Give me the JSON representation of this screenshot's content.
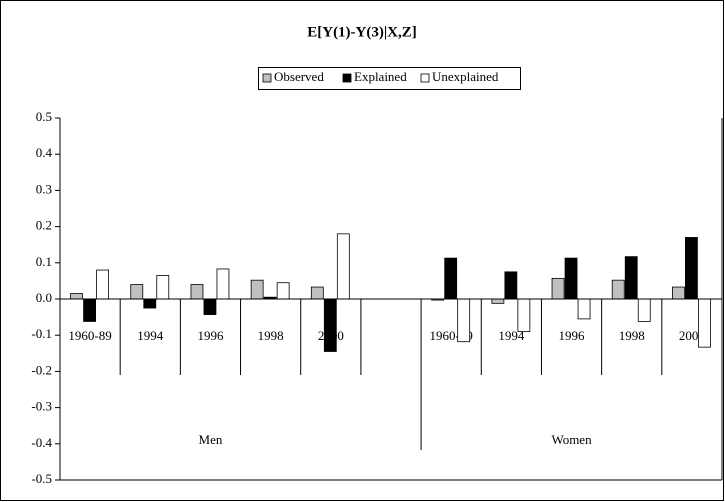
{
  "chart_data": {
    "type": "bar",
    "title": "E[Y(1)-Y(3)|X,Z]",
    "groups": [
      {
        "label": "Men",
        "categories": [
          "1960-89",
          "1994",
          "1996",
          "1998",
          "2000"
        ]
      },
      {
        "label": "Women",
        "categories": [
          "1960-89",
          "1994",
          "1996",
          "1998",
          "2000"
        ]
      }
    ],
    "series": [
      {
        "name": "Observed",
        "color": "#c0c0c0",
        "values": [
          0.015,
          0.04,
          0.04,
          0.052,
          0.033,
          -0.003,
          -0.012,
          0.057,
          0.052,
          0.033
        ]
      },
      {
        "name": "Explained",
        "color": "#000000",
        "values": [
          -0.062,
          -0.025,
          -0.043,
          0.005,
          -0.145,
          0.113,
          0.075,
          0.113,
          0.117,
          0.17
        ]
      },
      {
        "name": "Unexplained",
        "color": "#ffffff",
        "values": [
          0.08,
          0.065,
          0.083,
          0.045,
          0.18,
          -0.118,
          -0.09,
          -0.055,
          -0.062,
          -0.133
        ]
      }
    ],
    "ylim": [
      -0.5,
      0.5
    ],
    "yticks": [
      -0.5,
      -0.4,
      -0.3,
      -0.2,
      -0.1,
      {
        "value": 0,
        "label": "0.0"
      },
      0.1,
      0.2,
      0.3,
      0.4,
      0.5
    ],
    "legend": "top"
  }
}
